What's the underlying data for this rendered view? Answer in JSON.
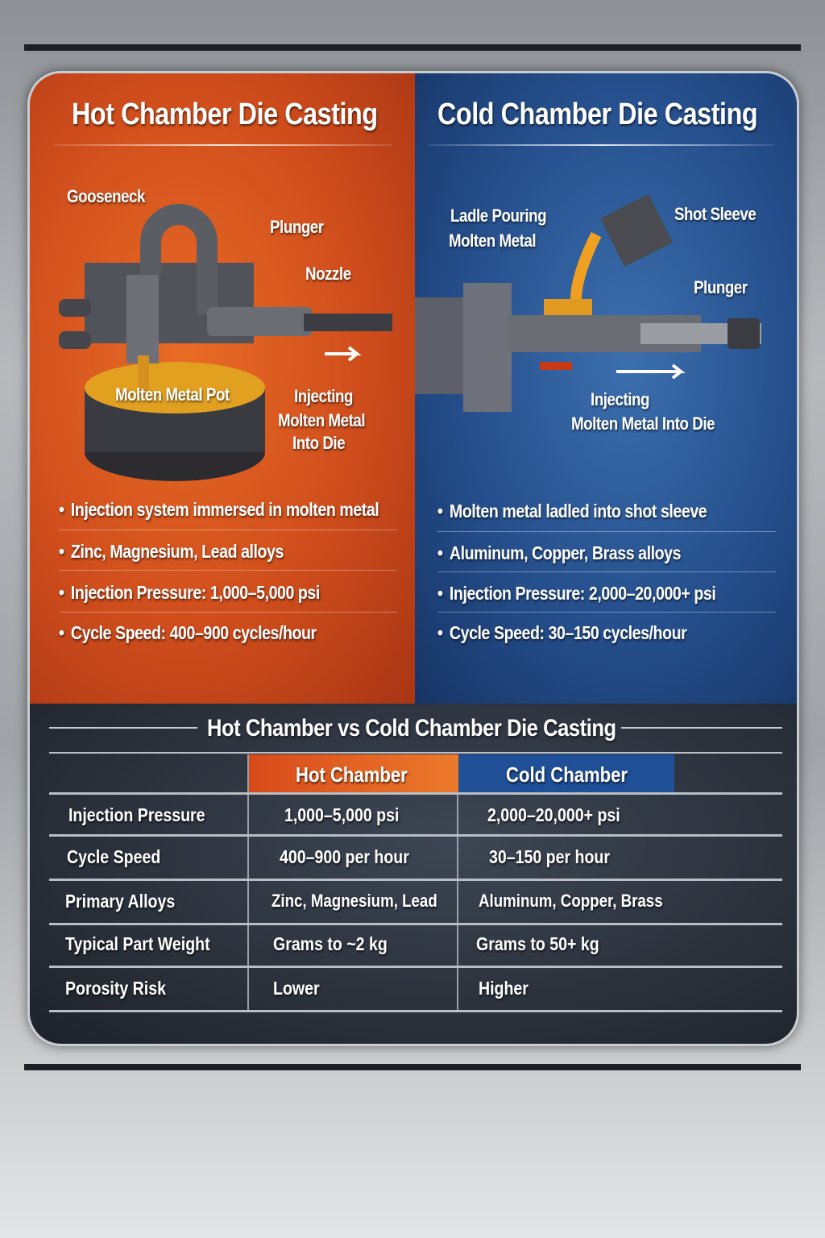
{
  "hot": {
    "title": "Hot Chamber Die Casting",
    "labels": {
      "gooseneck": "Gooseneck",
      "plunger": "Plunger",
      "nozzle": "Nozzle",
      "pot": "Molten Metal Pot",
      "injecting": [
        "Injecting",
        "Molten Metal",
        "Into Die"
      ]
    },
    "bullets": [
      "Injection system immersed in molten metal",
      "Zinc, Magnesium, Lead alloys",
      "Injection Pressure: 1,000–5,000 psi",
      "Cycle Speed: 400–900 cycles/hour"
    ],
    "color": "#d9561f"
  },
  "cold": {
    "title": "Cold Chamber Die Casting",
    "labels": {
      "ladle": [
        "Ladle Pouring",
        "Molten Metal"
      ],
      "shot_sleeve": "Shot Sleeve",
      "plunger": "Plunger",
      "injecting": [
        "Injecting",
        "Molten Metal Into Die"
      ]
    },
    "bullets": [
      "Molten metal ladled into shot sleeve",
      "Aluminum, Copper, Brass alloys",
      "Injection Pressure: 2,000–20,000+ psi",
      "Cycle Speed: 30–150 cycles/hour"
    ],
    "color": "#2a5592"
  },
  "comparison": {
    "title": "Hot Chamber vs Cold Chamber Die Casting",
    "headers": [
      "",
      "Hot Chamber",
      "Cold Chamber"
    ],
    "rows": [
      [
        "Injection Pressure",
        "1,000–5,000 psi",
        "2,000–20,000+ psi"
      ],
      [
        "Cycle Speed",
        "400–900 per hour",
        "30–150 per hour"
      ],
      [
        "Primary Alloys",
        "Zinc, Magnesium, Lead",
        "Aluminum, Copper, Brass"
      ],
      [
        "Typical Part Weight",
        "Grams to ~2 kg",
        "Grams to 50+ kg"
      ],
      [
        "Porosity Risk",
        "Lower",
        "Higher"
      ]
    ]
  }
}
